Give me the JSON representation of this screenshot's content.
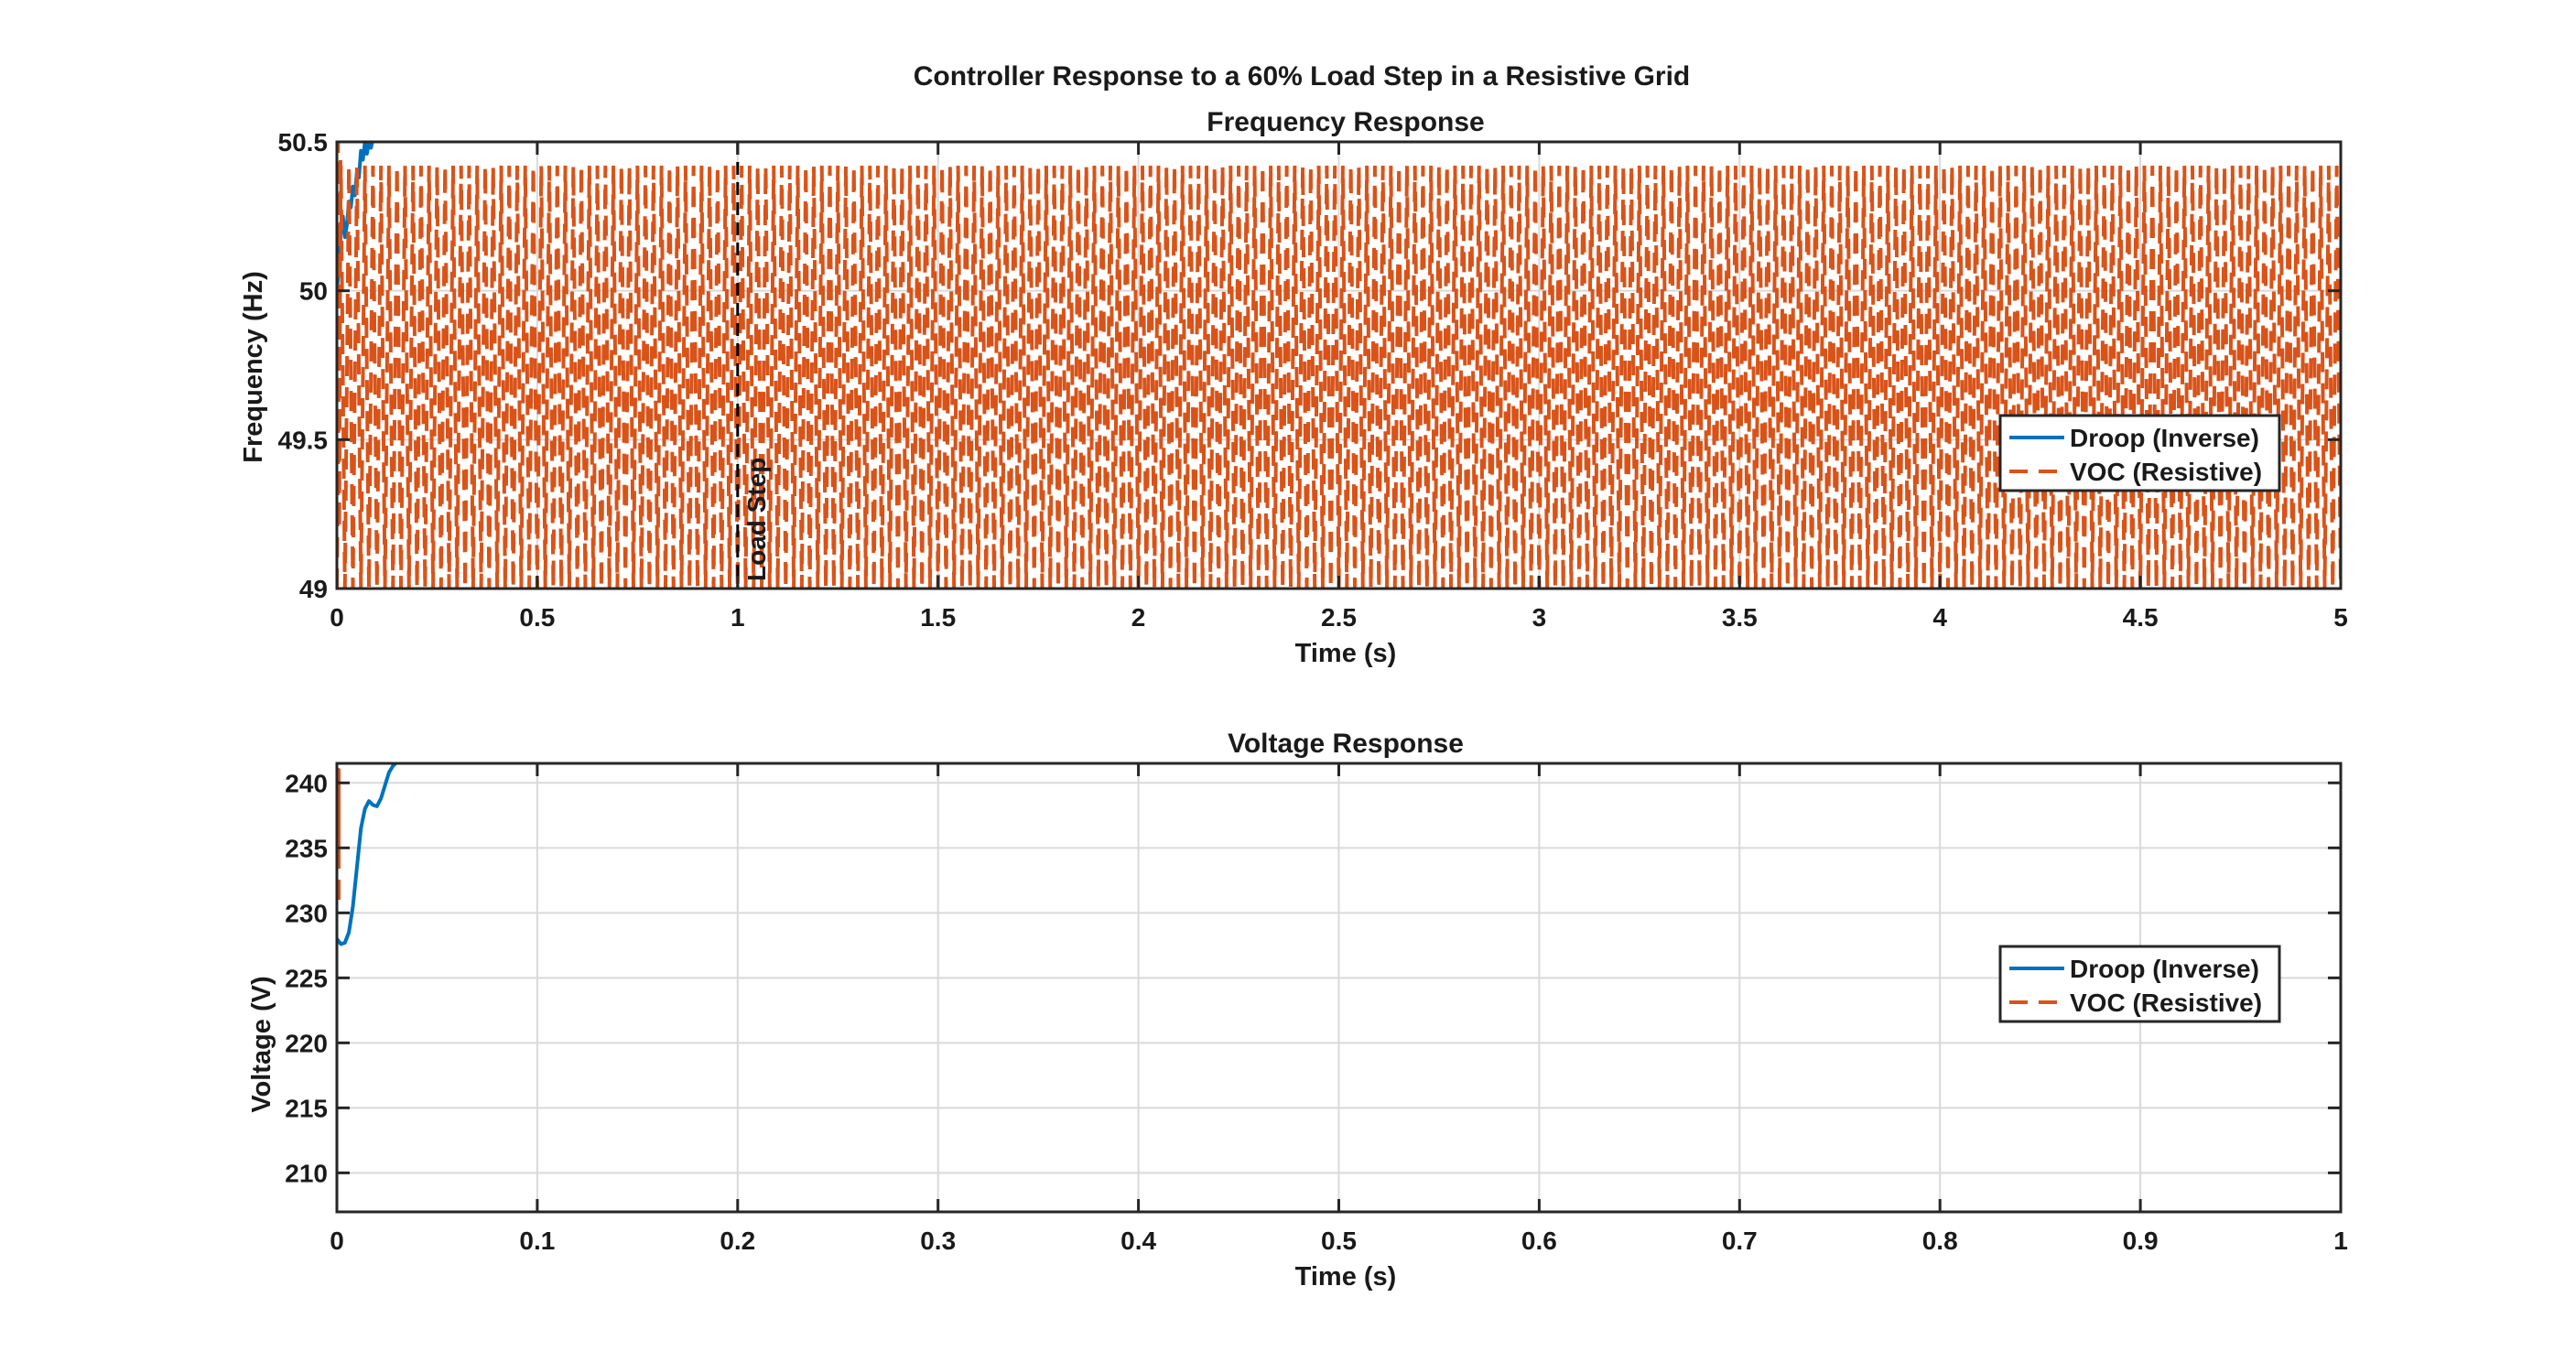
{
  "figure": {
    "suptitle": "Controller Response to a 60% Load Step in a Resistive Grid"
  },
  "colors": {
    "droop": "#0072BD",
    "voc": "#D95319",
    "axes": "#262626",
    "grid": "#d9d9d9",
    "load_step_line": "#000000"
  },
  "chart_data": [
    {
      "type": "line",
      "title": "Frequency Response",
      "xlabel": "Time (s)",
      "ylabel": "Frequency (Hz)",
      "xlim": [
        0,
        5
      ],
      "ylim": [
        49,
        50.5
      ],
      "xticks": [
        0,
        0.5,
        1,
        1.5,
        2,
        2.5,
        3,
        3.5,
        4,
        4.5,
        5
      ],
      "xtick_labels": [
        "0",
        "0.5",
        "1",
        "1.5",
        "2",
        "2.5",
        "3",
        "3.5",
        "4",
        "4.5",
        "5"
      ],
      "yticks": [
        49,
        49.5,
        50,
        50.5
      ],
      "ytick_labels": [
        "49",
        "49.5",
        "50",
        "50.5"
      ],
      "grid": true,
      "legend_position": "right",
      "series": [
        {
          "name": "Droop (Inverse)",
          "style": "solid",
          "color": "#0072BD",
          "x": [
            0,
            0.005,
            0.01,
            0.015,
            0.02,
            0.025,
            0.03,
            0.035,
            0.04,
            0.045,
            0.05,
            0.055,
            0.06,
            0.065,
            0.07,
            0.075,
            0.08,
            0.085,
            0.09
          ],
          "y": [
            50.0,
            50.08,
            50.2,
            50.25,
            50.18,
            50.22,
            50.3,
            50.28,
            50.35,
            50.32,
            50.4,
            50.38,
            50.47,
            50.44,
            50.5,
            50.46,
            50.5,
            50.48,
            50.51
          ]
        },
        {
          "name": "VOC (Resistive)",
          "style": "dashed",
          "color": "#D95319",
          "oscillation": {
            "t_start": 0,
            "t_end": 5,
            "period": 0.02,
            "min": 49.0,
            "max": 50.42
          },
          "initial_x": [
            0,
            0.003,
            0.006,
            0.009
          ],
          "initial_y": [
            49.0,
            50.5,
            49.2,
            50.45
          ]
        }
      ],
      "annotations": [
        {
          "type": "vline",
          "x": 1,
          "style": "dashed",
          "label": "Load Step"
        }
      ]
    },
    {
      "type": "line",
      "title": "Voltage Response",
      "xlabel": "Time (s)",
      "ylabel": "Voltage (V)",
      "xlim": [
        0,
        1
      ],
      "ylim": [
        207,
        241.5
      ],
      "xticks": [
        0,
        0.1,
        0.2,
        0.3,
        0.4,
        0.5,
        0.6,
        0.7,
        0.8,
        0.9,
        1
      ],
      "xtick_labels": [
        "0",
        "0.1",
        "0.2",
        "0.3",
        "0.4",
        "0.5",
        "0.6",
        "0.7",
        "0.8",
        "0.9",
        "1"
      ],
      "yticks": [
        210,
        215,
        220,
        225,
        230,
        235,
        240
      ],
      "ytick_labels": [
        "210",
        "215",
        "220",
        "225",
        "230",
        "235",
        "240"
      ],
      "grid": true,
      "legend_position": "right",
      "series": [
        {
          "name": "Droop (Inverse)",
          "style": "solid",
          "color": "#0072BD",
          "x": [
            0,
            0.002,
            0.004,
            0.006,
            0.008,
            0.01,
            0.012,
            0.014,
            0.016,
            0.018,
            0.02,
            0.022,
            0.024,
            0.026,
            0.028,
            0.03
          ],
          "y": [
            228.0,
            227.6,
            227.7,
            228.5,
            230.5,
            233.5,
            236.5,
            238.0,
            238.6,
            238.3,
            238.2,
            238.8,
            239.8,
            240.8,
            241.3,
            241.6
          ]
        },
        {
          "name": "VOC (Resistive)",
          "style": "dashed",
          "color": "#D95319",
          "x": [
            0,
            0,
            0,
            0,
            0
          ],
          "y": [
            231,
            241,
            234,
            240,
            236
          ]
        }
      ]
    }
  ]
}
